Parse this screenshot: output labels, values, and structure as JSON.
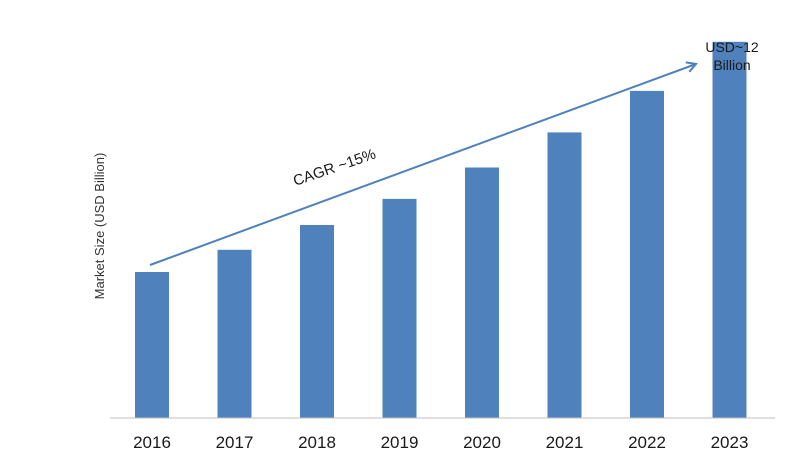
{
  "chart_data": {
    "type": "bar",
    "categories": [
      "2016",
      "2017",
      "2018",
      "2019",
      "2020",
      "2021",
      "2022",
      "2023"
    ],
    "values": [
      4.19,
      4.83,
      5.54,
      6.29,
      7.19,
      8.2,
      9.39,
      10.8
    ],
    "ylabel": "Market Size (USD Billion)",
    "xlabel": "",
    "ylim": [
      0,
      12
    ],
    "grid": false,
    "legend": "none",
    "bar_color": "#4f81bd",
    "arrow_color": "#4f81bd",
    "annotations": {
      "cagr": "CAGR ~15%",
      "end_value_line1": "USD~12",
      "end_value_line2": "Billion"
    }
  }
}
